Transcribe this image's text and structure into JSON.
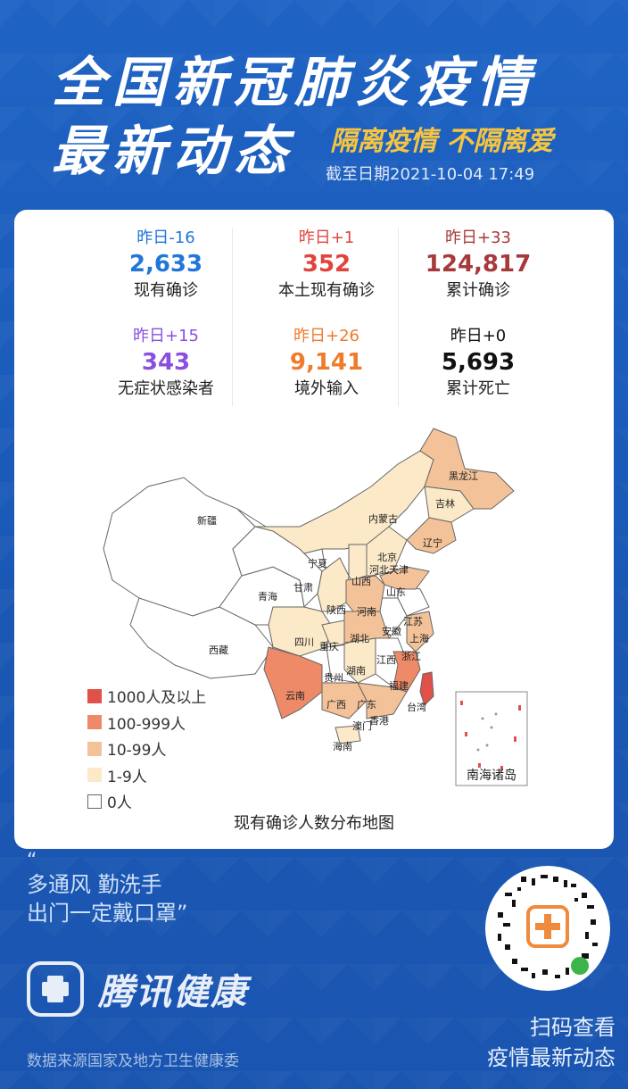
{
  "header": {
    "title_line1": "全国新冠肺炎疫情",
    "title_line2": "最新动态",
    "slogan": "隔离疫情 不隔离爱",
    "date": "截至日期2021-10-04 17:49"
  },
  "stats": [
    {
      "delta": "昨日-16",
      "value": "2,633",
      "label": "现有确诊",
      "color": "#2176d9"
    },
    {
      "delta": "昨日+1",
      "value": "352",
      "label": "本土现有确诊",
      "color": "#e0443b"
    },
    {
      "delta": "昨日+33",
      "value": "124,817",
      "label": "累计确诊",
      "color": "#a8393b"
    },
    {
      "delta": "昨日+15",
      "value": "343",
      "label": "无症状感染者",
      "color": "#8b4fe0"
    },
    {
      "delta": "昨日+26",
      "value": "9,141",
      "label": "境外输入",
      "color": "#ef7b2d"
    },
    {
      "delta": "昨日+0",
      "value": "5,693",
      "label": "累计死亡",
      "color": "#111111"
    }
  ],
  "legend": [
    {
      "label": "1000人及以上",
      "color": "#e0514a"
    },
    {
      "label": "100-999人",
      "color": "#ef8a68"
    },
    {
      "label": "10-99人",
      "color": "#f3c298"
    },
    {
      "label": "1-9人",
      "color": "#fbe9c8"
    },
    {
      "label": "0人",
      "color": "#ffffff"
    }
  ],
  "map": {
    "caption": "现有确诊人数分布地图",
    "inset_label": "南海诸岛",
    "provinces": [
      "新疆",
      "西藏",
      "青海",
      "甘肃",
      "宁夏",
      "内蒙古",
      "黑龙江",
      "吉林",
      "辽宁",
      "北京",
      "天津",
      "河北",
      "山西",
      "山东",
      "陕西",
      "河南",
      "江苏",
      "安徽",
      "上海",
      "四川",
      "重庆",
      "湖北",
      "浙江",
      "江西",
      "湖南",
      "贵州",
      "云南",
      "广西",
      "广东",
      "福建",
      "台湾",
      "香港",
      "澳门",
      "海南"
    ]
  },
  "footer": {
    "quote_open": "“",
    "quote_line1": "多通风 勤洗手",
    "quote_line2": "出门一定戴口罩”",
    "brand": "腾讯健康",
    "source": "数据来源国家及地方卫生健康委",
    "scan_line1": "扫码查看",
    "scan_line2": "疫情最新动态"
  }
}
